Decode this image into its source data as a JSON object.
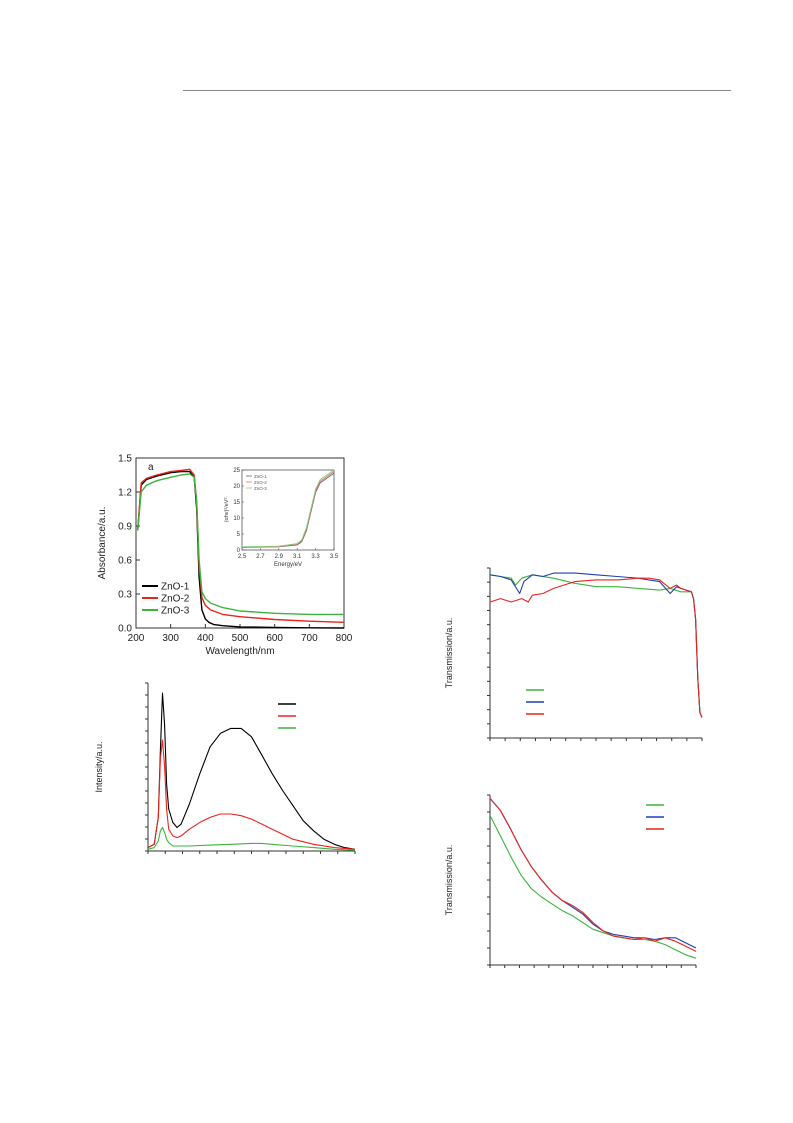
{
  "colors": {
    "black": "#000000",
    "red": "#e8241c",
    "green": "#3cb43c",
    "blue": "#1f3fb4",
    "light_red": "#f0706a",
    "light_green": "#7fd07f"
  },
  "chart_data": [
    {
      "id": "absorbance",
      "type": "line",
      "panel_label": "a",
      "xlabel": "Wavelength/nm",
      "ylabel": "Absorbance/a.u.",
      "xlim": [
        200,
        800
      ],
      "ylim": [
        0.0,
        1.5
      ],
      "xticks": [
        "200",
        "300",
        "400",
        "500",
        "600",
        "700",
        "800"
      ],
      "yticks": [
        "0.0",
        "0.3",
        "0.6",
        "0.9",
        "1.2",
        "1.5"
      ],
      "legend": "bottom-left",
      "series": [
        {
          "name": "ZnO-1",
          "color": "#000000",
          "x": [
            205,
            215,
            230,
            260,
            300,
            330,
            355,
            368,
            375,
            382,
            390,
            400,
            410,
            425,
            450,
            500,
            600,
            700,
            800
          ],
          "y": [
            0.86,
            1.26,
            1.31,
            1.34,
            1.37,
            1.38,
            1.38,
            1.33,
            1.05,
            0.45,
            0.16,
            0.08,
            0.05,
            0.03,
            0.02,
            0.01,
            0.005,
            0.002,
            0.0
          ]
        },
        {
          "name": "ZnO-2",
          "color": "#e8241c",
          "x": [
            205,
            215,
            230,
            260,
            300,
            330,
            355,
            368,
            375,
            382,
            390,
            400,
            415,
            450,
            500,
            600,
            700,
            800
          ],
          "y": [
            0.86,
            1.28,
            1.32,
            1.35,
            1.38,
            1.39,
            1.4,
            1.35,
            1.1,
            0.55,
            0.27,
            0.2,
            0.16,
            0.12,
            0.1,
            0.075,
            0.06,
            0.05
          ]
        },
        {
          "name": "ZnO-3",
          "color": "#3cb43c",
          "x": [
            205,
            215,
            230,
            260,
            300,
            330,
            355,
            368,
            375,
            382,
            390,
            400,
            415,
            450,
            500,
            600,
            700,
            800
          ],
          "y": [
            0.86,
            1.2,
            1.26,
            1.3,
            1.33,
            1.35,
            1.36,
            1.33,
            1.12,
            0.6,
            0.32,
            0.26,
            0.22,
            0.18,
            0.15,
            0.13,
            0.12,
            0.12
          ]
        }
      ],
      "inset": {
        "xlabel": "Energy/eV",
        "ylabel": "(αhν)²/eV²",
        "xlim": [
          2.5,
          3.5
        ],
        "ylim": [
          0,
          25
        ],
        "xticks": [
          "2.5",
          "2.7",
          "2.9",
          "3.1",
          "3.3",
          "3.5"
        ],
        "yticks": [
          "0",
          "5",
          "10",
          "15",
          "20",
          "25"
        ],
        "legend_names": [
          "ZnO-1",
          "ZnO-2",
          "ZnO-3"
        ],
        "series": [
          {
            "name": "ZnO-1",
            "color": "#666666",
            "x": [
              2.5,
              2.9,
              3.1,
              3.15,
              3.2,
              3.25,
              3.3,
              3.35,
              3.4,
              3.45,
              3.5
            ],
            "y": [
              0.8,
              1.0,
              1.6,
              2.6,
              6,
              12,
              18,
              21,
              22,
              23,
              24
            ]
          },
          {
            "name": "ZnO-2",
            "color": "#f0706a",
            "x": [
              2.5,
              2.9,
              3.1,
              3.15,
              3.2,
              3.25,
              3.3,
              3.35,
              3.4,
              3.45,
              3.5
            ],
            "y": [
              0.9,
              1.1,
              1.8,
              2.9,
              6.5,
              12.5,
              18.5,
              21.5,
              22.5,
              23.5,
              24.5
            ]
          },
          {
            "name": "ZnO-3",
            "color": "#7fd07f",
            "x": [
              2.5,
              2.9,
              3.1,
              3.15,
              3.2,
              3.25,
              3.3,
              3.35,
              3.4,
              3.45,
              3.5
            ],
            "y": [
              1.0,
              1.2,
              2.0,
              3.2,
              7,
              13,
              19,
              22,
              23,
              24,
              25
            ]
          }
        ]
      }
    },
    {
      "id": "photoluminescence",
      "type": "line",
      "ylabel": "Intensity/a.u.",
      "xlim": [
        0,
        100
      ],
      "ylim": [
        0,
        100
      ],
      "legend": "top-right",
      "series": [
        {
          "color": "#000000",
          "x": [
            0,
            3,
            5,
            6,
            7,
            8,
            9,
            10,
            12,
            14,
            16,
            20,
            25,
            30,
            35,
            40,
            45,
            50,
            55,
            60,
            65,
            70,
            75,
            80,
            85,
            90,
            95,
            100
          ],
          "y": [
            2,
            4,
            20,
            60,
            94,
            75,
            40,
            25,
            17,
            14,
            16,
            28,
            46,
            62,
            70,
            73,
            73,
            68,
            57,
            46,
            36,
            27,
            18,
            12,
            7,
            4,
            2,
            1
          ]
        },
        {
          "color": "#e8241c",
          "x": [
            0,
            3,
            5,
            6,
            7,
            8,
            9,
            10,
            12,
            14,
            16,
            20,
            25,
            30,
            35,
            40,
            45,
            50,
            55,
            60,
            65,
            70,
            80,
            90,
            100
          ],
          "y": [
            2,
            4,
            20,
            55,
            66,
            50,
            25,
            13,
            9,
            8,
            9,
            13,
            17,
            20,
            22,
            22,
            21,
            19,
            16,
            13,
            10,
            7,
            4,
            2,
            1
          ]
        },
        {
          "color": "#3cb43c",
          "x": [
            0,
            3,
            5,
            6,
            7,
            8,
            9,
            10,
            12,
            15,
            20,
            30,
            40,
            50,
            55,
            60,
            70,
            80,
            90,
            100
          ],
          "y": [
            1,
            2,
            6,
            12,
            14,
            11,
            7,
            5,
            3,
            3,
            3,
            3.5,
            4,
            4.5,
            4.5,
            4,
            3,
            2,
            1,
            0.5
          ]
        }
      ]
    },
    {
      "id": "transmission-1",
      "type": "line",
      "ylabel": "Transmission/a.u.",
      "xlim": [
        0,
        100
      ],
      "ylim": [
        0,
        100
      ],
      "legend": "bottom-left",
      "series": [
        {
          "color": "#3cb43c",
          "x": [
            0,
            5,
            10,
            12,
            15,
            20,
            30,
            40,
            50,
            60,
            70,
            80,
            85,
            90,
            95,
            96,
            97,
            98,
            99,
            100
          ],
          "y": [
            96,
            95,
            94,
            90,
            94,
            96,
            94,
            91,
            89,
            89,
            88,
            87,
            88,
            86,
            86,
            82,
            70,
            35,
            15,
            12
          ]
        },
        {
          "color": "#1f3fb4",
          "x": [
            0,
            5,
            10,
            14,
            16,
            20,
            25,
            30,
            40,
            50,
            60,
            70,
            75,
            80,
            85,
            88,
            90,
            95,
            96,
            97,
            98,
            99,
            100
          ],
          "y": [
            96,
            95,
            93,
            85,
            92,
            96,
            95,
            97,
            97,
            96,
            95,
            94,
            93,
            92,
            85,
            89,
            88,
            86,
            82,
            70,
            35,
            15,
            12
          ]
        },
        {
          "color": "#e8241c",
          "x": [
            0,
            5,
            10,
            15,
            18,
            20,
            25,
            30,
            35,
            40,
            50,
            60,
            70,
            75,
            80,
            85,
            88,
            90,
            95,
            96,
            97,
            98,
            99,
            100
          ],
          "y": [
            80,
            82,
            80,
            82,
            80,
            84,
            85,
            88,
            90,
            92,
            93,
            93,
            94,
            94,
            93,
            88,
            90,
            88,
            86,
            82,
            70,
            35,
            15,
            12
          ]
        }
      ]
    },
    {
      "id": "transmission-2",
      "type": "line",
      "ylabel": "Transmission/a.u.",
      "xlim": [
        0,
        100
      ],
      "ylim": [
        0,
        100
      ],
      "legend": "top-right",
      "series": [
        {
          "color": "#3cb43c",
          "x": [
            0,
            5,
            10,
            15,
            20,
            25,
            30,
            35,
            40,
            45,
            50,
            55,
            60,
            65,
            70,
            75,
            80,
            85,
            90,
            95,
            100
          ],
          "y": [
            88,
            76,
            64,
            53,
            45,
            40,
            36,
            32,
            29,
            25,
            21,
            19,
            17,
            16,
            15,
            15,
            14,
            12,
            9,
            6,
            4
          ]
        },
        {
          "color": "#1f3fb4",
          "x": [
            0,
            5,
            10,
            15,
            20,
            25,
            30,
            35,
            40,
            45,
            50,
            55,
            60,
            65,
            70,
            75,
            80,
            85,
            90,
            95,
            100
          ],
          "y": [
            98,
            91,
            80,
            68,
            58,
            50,
            43,
            38,
            34,
            30,
            24,
            20,
            18,
            17,
            16,
            16,
            15,
            16,
            16,
            13,
            10
          ]
        },
        {
          "color": "#e8241c",
          "x": [
            0,
            5,
            10,
            15,
            20,
            25,
            30,
            35,
            40,
            45,
            50,
            55,
            60,
            65,
            70,
            75,
            80,
            85,
            90,
            95,
            100
          ],
          "y": [
            98,
            91,
            80,
            68,
            58,
            50,
            43,
            38,
            35,
            31,
            25,
            20,
            17,
            16,
            15,
            16,
            14,
            16,
            14,
            11,
            8
          ]
        }
      ]
    }
  ]
}
